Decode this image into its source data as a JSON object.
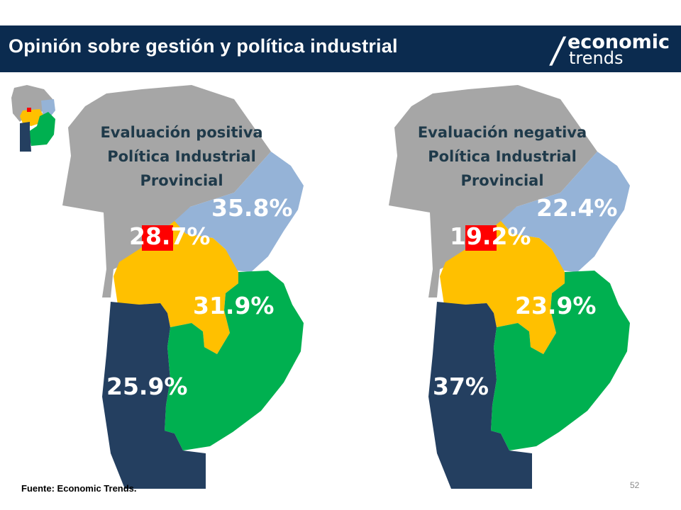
{
  "header": {
    "title": "Opinión sobre gestión y política industrial",
    "logo_top": "economic",
    "logo_bottom": "trends",
    "logo_slash": "/"
  },
  "colors": {
    "north": "#a6a6a6",
    "east": "#95b3d7",
    "capital": "#ff0000",
    "center": "#ffc000",
    "southeast": "#00b050",
    "southwest": "#243f60"
  },
  "maps": {
    "left": {
      "title_line1": "Evaluación positiva",
      "title_line2": "Política Industrial",
      "title_line3": "Provincial",
      "east": "35.8%",
      "capital": "28.7%",
      "center": "31.9%",
      "southwest": "25.9%"
    },
    "right": {
      "title_line1": "Evaluación negativa",
      "title_line2": "Política Industrial",
      "title_line3": "Provincial",
      "east": "22.4%",
      "capital": "19.2%",
      "center": "23.9%",
      "southwest": "37%"
    }
  },
  "footer": {
    "source": "Fuente: Economic Trends.",
    "page": "52"
  }
}
